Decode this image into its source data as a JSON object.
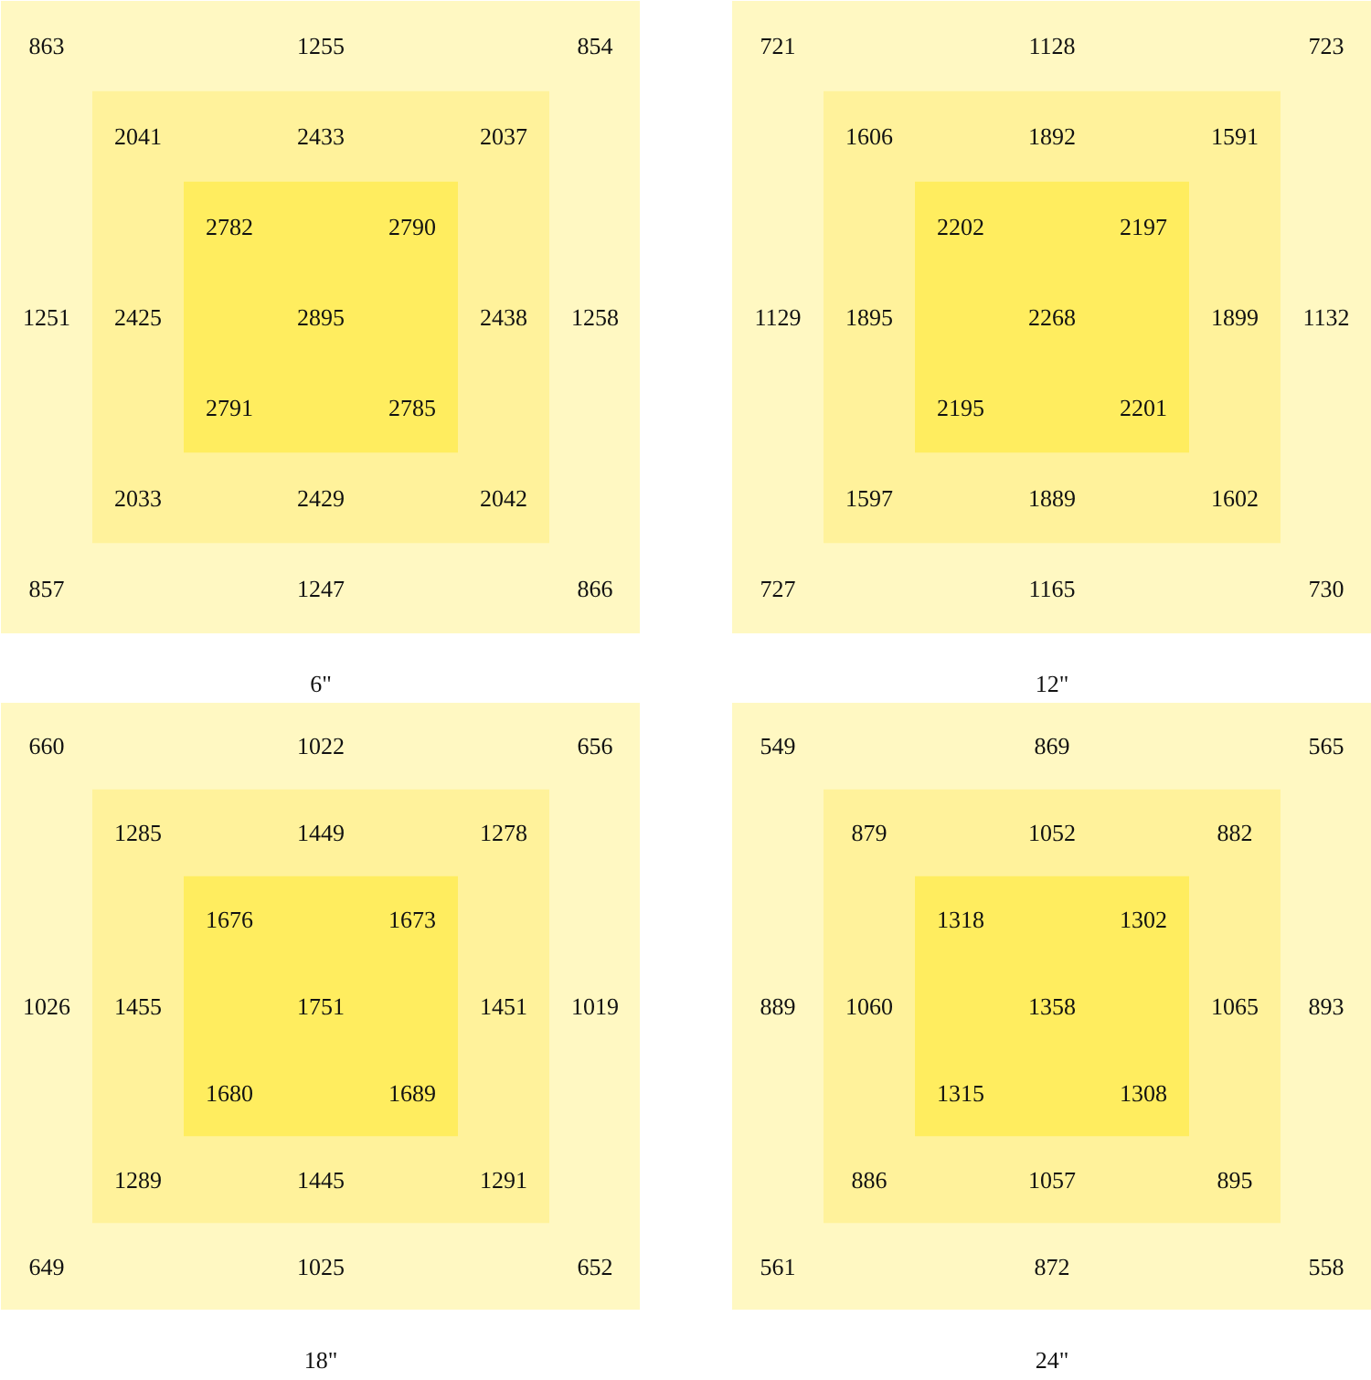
{
  "chart_data": [
    {
      "type": "other",
      "xlabel": "6\"",
      "data_labels": true,
      "values": [
        863,
        1255,
        854,
        2041,
        2433,
        2037,
        2782,
        2790,
        1251,
        2425,
        2895,
        2438,
        1258,
        2791,
        2785,
        2033,
        2429,
        2042,
        857,
        1247,
        866
      ]
    },
    {
      "type": "other",
      "xlabel": "12\"",
      "data_labels": true,
      "values": [
        721,
        1128,
        723,
        1606,
        1892,
        1591,
        2202,
        2197,
        1129,
        1895,
        2268,
        1899,
        1132,
        2195,
        2201,
        1597,
        1889,
        1602,
        727,
        1165,
        730
      ]
    },
    {
      "type": "other",
      "xlabel": "18\"",
      "data_labels": true,
      "values": [
        660,
        1022,
        656,
        1285,
        1449,
        1278,
        1676,
        1673,
        1026,
        1455,
        1751,
        1451,
        1019,
        1680,
        1689,
        1289,
        1445,
        1291,
        649,
        1025,
        652
      ]
    },
    {
      "type": "other",
      "xlabel": "24\"",
      "data_labels": true,
      "values": [
        549,
        869,
        565,
        879,
        1052,
        882,
        1318,
        1302,
        889,
        1060,
        1358,
        1065,
        893,
        1315,
        1308,
        886,
        1057,
        895,
        561,
        872,
        558
      ]
    }
  ]
}
